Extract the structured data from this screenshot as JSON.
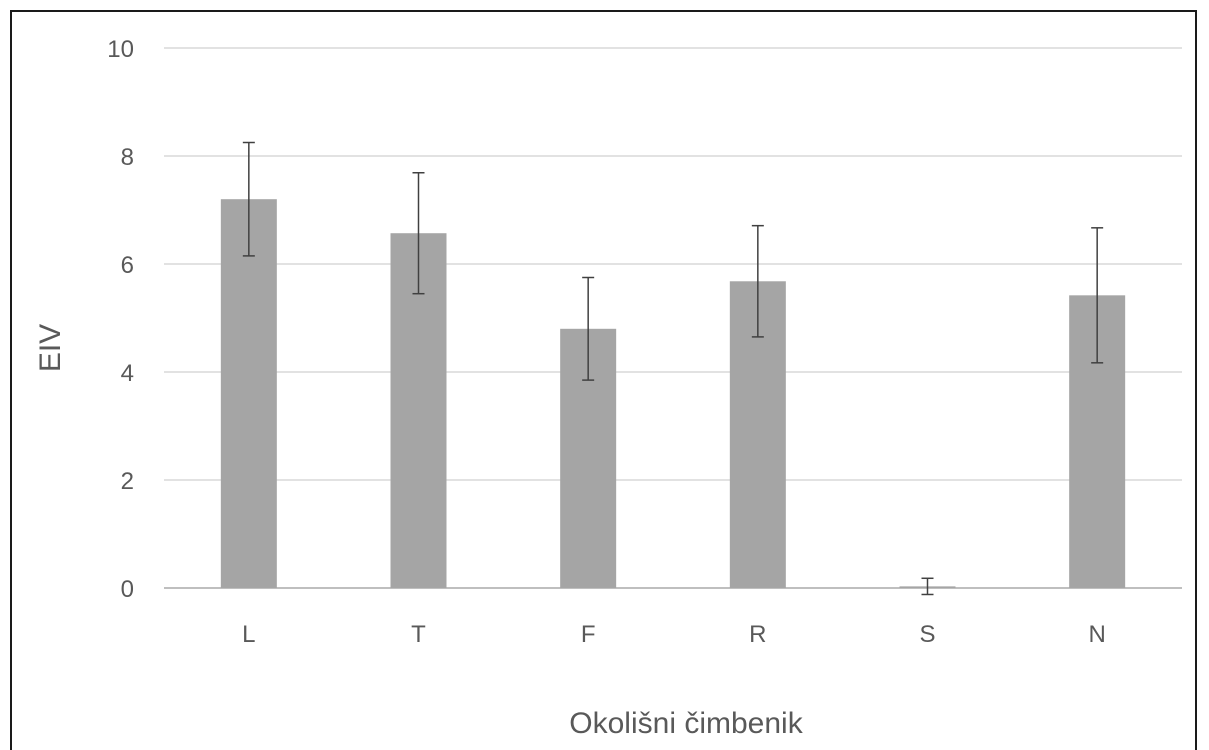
{
  "chart_data": {
    "type": "bar",
    "title": "",
    "xlabel": "Okolišni čimbenik",
    "ylabel": "EIV",
    "categories": [
      "L",
      "T",
      "F",
      "R",
      "S",
      "N"
    ],
    "values": [
      7.2,
      6.57,
      4.8,
      5.68,
      0.03,
      5.42
    ],
    "error": [
      1.05,
      1.12,
      0.95,
      1.03,
      0.15,
      1.25
    ],
    "ylim": [
      0,
      10
    ],
    "yticks": [
      "0",
      "2",
      "4",
      "6",
      "8",
      "10"
    ],
    "grid": true,
    "legend": "none",
    "bar_color": "#a5a5a5",
    "grid_color": "#d9d9d9",
    "error_bar_color": "#404040"
  }
}
